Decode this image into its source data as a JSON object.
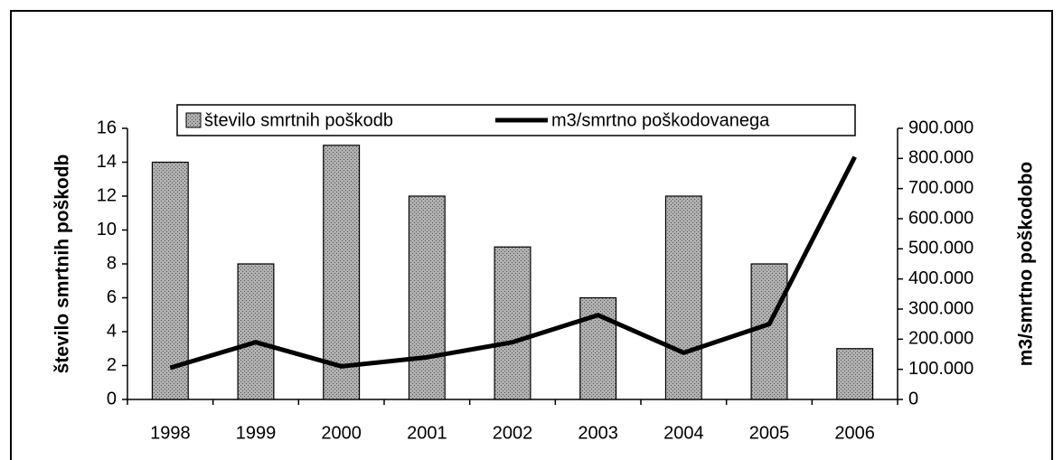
{
  "chart_data": {
    "type": "bar",
    "categories": [
      "1998",
      "1999",
      "2000",
      "2001",
      "2002",
      "2003",
      "2004",
      "2005",
      "2006"
    ],
    "series": [
      {
        "name": "število smrtnih poškodb",
        "type": "bar",
        "color": "#a6a6a6",
        "values": [
          14,
          8,
          15,
          12,
          9,
          6,
          12,
          8,
          3
        ]
      },
      {
        "name": "m3/smrtno poškodovanega",
        "type": "line",
        "axis": "y2",
        "color": "#000000",
        "values": [
          105000,
          190000,
          110000,
          140000,
          190000,
          280000,
          155000,
          250000,
          805000
        ]
      }
    ],
    "y_label": "število smrtnih poškodb",
    "y2_label": "m3/smrtno poškodobo",
    "ylim": [
      0,
      16
    ],
    "yticks": [
      0,
      2,
      4,
      6,
      8,
      10,
      12,
      14,
      16
    ],
    "y2lim": [
      0,
      900000
    ],
    "y2ticks": [
      0,
      {
        "value": 100000,
        "label": "100.000"
      },
      {
        "value": 200000,
        "label": "200.000"
      },
      {
        "value": 300000,
        "label": "300.000"
      },
      {
        "value": 400000,
        "label": "400.000"
      },
      {
        "value": 500000,
        "label": "500.000"
      },
      {
        "value": 600000,
        "label": "600.000"
      },
      {
        "value": 700000,
        "label": "700.000"
      },
      {
        "value": 800000,
        "label": "800.000"
      },
      {
        "value": 900000,
        "label": "900.000"
      }
    ],
    "legend": "top",
    "grid": false
  }
}
